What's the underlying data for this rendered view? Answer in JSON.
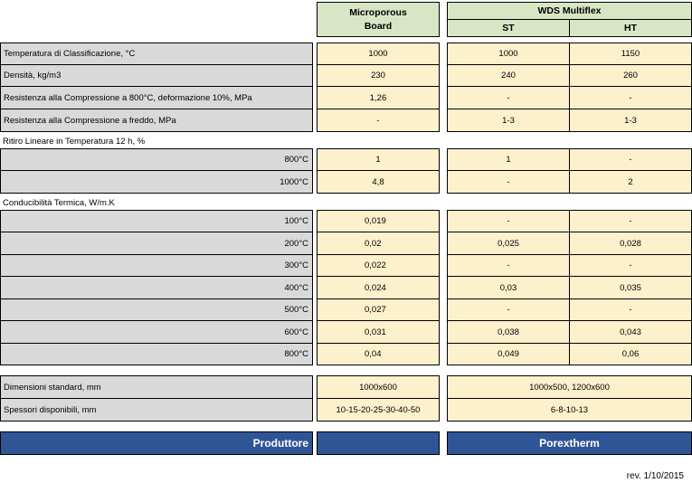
{
  "header": {
    "microporous": "Microporous\nBoard",
    "wds": "WDS Multiflex",
    "st": "ST",
    "ht": "HT"
  },
  "rows_top": [
    {
      "label": "Temperatura di Classificazione, °C",
      "micro": "1000",
      "st": "1000",
      "ht": "1150"
    },
    {
      "label": "Densità, kg/m3",
      "micro": "230",
      "st": "240",
      "ht": "260"
    },
    {
      "label": "Resistenza alla Compressione a 800°C, deformazione 10%, MPa",
      "micro": "1,26",
      "st": "-",
      "ht": "-"
    },
    {
      "label": "Resistenza alla Compressione a freddo, MPa",
      "micro": "-",
      "st": "1-3",
      "ht": "1-3"
    }
  ],
  "shrinkage": {
    "title": "Ritiro Lineare in Temperatura 12 h, %",
    "rows": [
      {
        "label": "800°C",
        "micro": "1",
        "st": "1",
        "ht": "-"
      },
      {
        "label": "1000°C",
        "micro": "4,8",
        "st": "-",
        "ht": "2"
      }
    ]
  },
  "conductivity": {
    "title": "Conducibilità Termica, W/m.K",
    "rows": [
      {
        "label": "100°C",
        "micro": "0,019",
        "st": "-",
        "ht": "-"
      },
      {
        "label": "200°C",
        "micro": "0,02",
        "st": "0,025",
        "ht": "0,028"
      },
      {
        "label": "300°C",
        "micro": "0,022",
        "st": "-",
        "ht": "-"
      },
      {
        "label": "400°C",
        "micro": "0,024",
        "st": "0,03",
        "ht": "0,035"
      },
      {
        "label": "500°C",
        "micro": "0,027",
        "st": "-",
        "ht": "-"
      },
      {
        "label": "600°C",
        "micro": "0,031",
        "st": "0,038",
        "ht": "0,043"
      },
      {
        "label": "800°C",
        "micro": "0,04",
        "st": "0,049",
        "ht": "0,06"
      }
    ]
  },
  "dimensions": {
    "label": "Dimensioni standard, mm",
    "micro": "1000x600",
    "wds": "1000x500, 1200x600"
  },
  "thickness": {
    "label": "Spessori disponibili, mm",
    "micro": "10-15-20-25-30-40-50",
    "wds": "6-8-10-13"
  },
  "producer": {
    "label": "Produttore",
    "micro": "",
    "wds": "Porextherm"
  },
  "revision": "rev. 1/10/2015",
  "colors": {
    "label_bg": "#d9d9d9",
    "value_bg": "#fdf0cc",
    "header_bg": "#d8e6c5",
    "producer_bg": "#2f5597"
  }
}
